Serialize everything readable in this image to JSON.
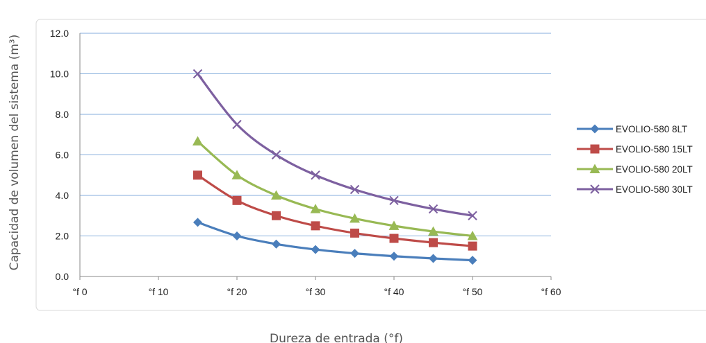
{
  "chart_data": {
    "type": "line",
    "xlabel": "Dureza de entrada (°f)",
    "ylabel": "Capacidad de volumen del sistema (m³)",
    "xlim": [
      0,
      60
    ],
    "ylim": [
      0,
      12
    ],
    "x_ticks": [
      "°f 0",
      "°f 10",
      "°f 20",
      "°f 30",
      "°f 40",
      "°f 50",
      "°f 60"
    ],
    "y_ticks": [
      "0.0",
      "2.0",
      "4.0",
      "6.0",
      "8.0",
      "10.0",
      "12.0"
    ],
    "grid": "horizontal",
    "legend_position": "right",
    "x": [
      15,
      20,
      25,
      30,
      35,
      40,
      45,
      50
    ],
    "series": [
      {
        "name": "EVOLIO-580  8LT",
        "marker": "diamond",
        "color": "#4a7ebb",
        "values": [
          2.67,
          2.0,
          1.6,
          1.33,
          1.14,
          1.0,
          0.89,
          0.8
        ]
      },
      {
        "name": "EVOLIO-580 15LT",
        "marker": "square",
        "color": "#be4b48",
        "values": [
          5.0,
          3.75,
          3.0,
          2.5,
          2.14,
          1.88,
          1.67,
          1.5
        ]
      },
      {
        "name": "EVOLIO-580 20LT",
        "marker": "triangle",
        "color": "#98b954",
        "values": [
          6.67,
          5.0,
          4.0,
          3.33,
          2.86,
          2.5,
          2.22,
          2.0
        ]
      },
      {
        "name": "EVOLIO-580 30LT",
        "marker": "x",
        "color": "#7d60a0",
        "values": [
          10.0,
          7.5,
          6.0,
          5.0,
          4.29,
          3.75,
          3.33,
          3.0
        ]
      }
    ]
  }
}
